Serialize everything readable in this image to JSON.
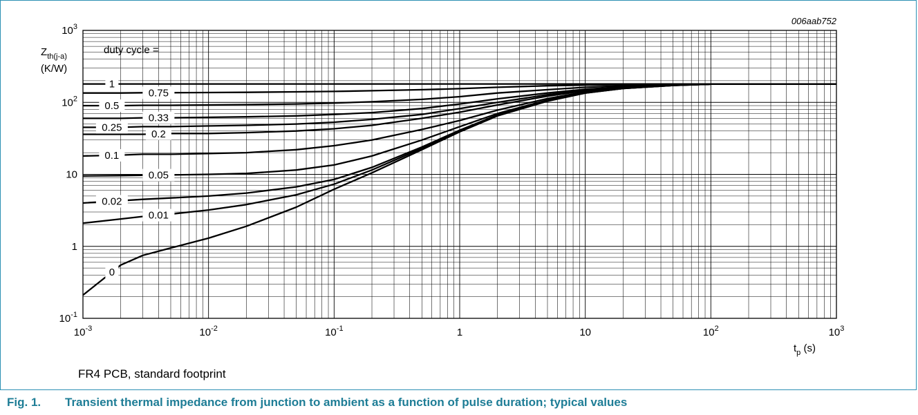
{
  "figure_code": "006aab752",
  "note": "FR4 PCB, standard footprint",
  "caption": {
    "number": "Fig. 1.",
    "text": "Transient thermal impedance from junction to ambient as a function of pulse duration; typical values"
  },
  "chart_data": {
    "type": "line",
    "xscale": "log",
    "yscale": "log",
    "xlim": [
      0.001,
      1000
    ],
    "ylim": [
      0.1,
      1000
    ],
    "grid": true,
    "xlabel": "t_p (s)",
    "ylabel": "Z_th(j-a) (K/W)",
    "legend_title": "duty cycle =",
    "x_ticks": [
      {
        "base": "10",
        "exp": "-3"
      },
      {
        "base": "10",
        "exp": "-2"
      },
      {
        "base": "10",
        "exp": "-1"
      },
      {
        "base": "1",
        "exp": ""
      },
      {
        "base": "10",
        "exp": ""
      },
      {
        "base": "10",
        "exp": "2"
      },
      {
        "base": "10",
        "exp": "3"
      }
    ],
    "y_ticks": [
      {
        "base": "10",
        "exp": "-1"
      },
      {
        "base": "1",
        "exp": ""
      },
      {
        "base": "10",
        "exp": ""
      },
      {
        "base": "10",
        "exp": "2"
      },
      {
        "base": "10",
        "exp": "3"
      }
    ],
    "x": [
      0.001,
      0.002,
      0.003,
      0.005,
      0.01,
      0.02,
      0.05,
      0.1,
      0.2,
      0.5,
      1,
      2,
      5,
      10,
      20,
      50,
      100,
      200,
      1000
    ],
    "series": [
      {
        "name": "1",
        "values": [
          180,
          180,
          180,
          180,
          180,
          180,
          180,
          180,
          180,
          180,
          180,
          180,
          180,
          180,
          180,
          180,
          180,
          180,
          180
        ]
      },
      {
        "name": "0.75",
        "values": [
          135,
          135,
          136,
          136,
          137,
          138,
          140,
          142,
          145,
          150,
          155,
          162,
          170,
          174,
          177,
          179,
          180,
          180,
          180
        ]
      },
      {
        "name": "0.5",
        "values": [
          90,
          90,
          91,
          91,
          92,
          93,
          95,
          98,
          102,
          110,
          120,
          135,
          150,
          162,
          170,
          177,
          180,
          180,
          180
        ]
      },
      {
        "name": "0.33",
        "values": [
          60,
          60,
          61,
          61,
          62,
          63,
          65,
          68,
          72,
          82,
          95,
          112,
          135,
          152,
          165,
          175,
          180,
          180,
          180
        ]
      },
      {
        "name": "0.25",
        "values": [
          45,
          45,
          46,
          46,
          47,
          48,
          50,
          53,
          58,
          68,
          82,
          100,
          128,
          148,
          162,
          174,
          179,
          180,
          180
        ]
      },
      {
        "name": "0.2",
        "values": [
          36,
          36,
          36,
          37,
          37,
          38,
          40,
          43,
          48,
          60,
          73,
          92,
          122,
          145,
          160,
          174,
          179,
          180,
          180
        ]
      },
      {
        "name": "0.1",
        "values": [
          18,
          18.5,
          19,
          19,
          19.5,
          20,
          22,
          25,
          30,
          42,
          56,
          78,
          113,
          140,
          158,
          173,
          179,
          180,
          180
        ]
      },
      {
        "name": "0.05",
        "values": [
          9.5,
          9.6,
          9.7,
          9.8,
          10,
          10.3,
          11.5,
          13.5,
          18,
          30,
          46,
          70,
          108,
          137,
          157,
          173,
          179,
          180,
          180
        ]
      },
      {
        "name": "0.02",
        "values": [
          4,
          4.3,
          4.5,
          4.7,
          5,
          5.5,
          6.7,
          8.5,
          12.5,
          24,
          41,
          67,
          106,
          136,
          156,
          172,
          179,
          180,
          180
        ]
      },
      {
        "name": "0.01",
        "values": [
          2.1,
          2.4,
          2.6,
          2.8,
          3.2,
          3.8,
          5.2,
          7.3,
          11.5,
          23,
          40,
          66,
          105,
          135,
          156,
          172,
          179,
          180,
          180
        ]
      },
      {
        "name": "0",
        "values": [
          0.21,
          0.55,
          0.75,
          0.95,
          1.3,
          1.9,
          3.5,
          6.2,
          10.5,
          22,
          39,
          65,
          104,
          135,
          156,
          172,
          179,
          180,
          180
        ]
      }
    ]
  }
}
